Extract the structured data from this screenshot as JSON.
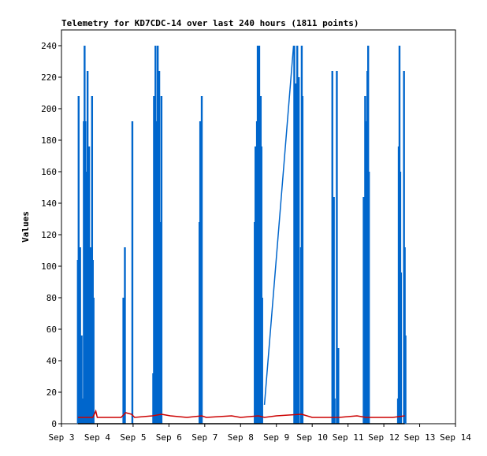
{
  "chart_data": {
    "type": "line",
    "title": "Telemetry for KD7CDC-14 over last 240 hours (1811 points)",
    "xlabel": "",
    "ylabel": "Values",
    "ylim": [
      0,
      250
    ],
    "xlim": [
      "Sep 3",
      "Sep 14"
    ],
    "grid": false,
    "x_ticks": [
      "Sep 3",
      "Sep 4",
      "Sep 5",
      "Sep 6",
      "Sep 7",
      "Sep 8",
      "Sep 9",
      "Sep 10",
      "Sep 11",
      "Sep 12",
      "Sep 13",
      "Sep 14"
    ],
    "y_ticks": [
      0,
      20,
      40,
      60,
      80,
      100,
      120,
      140,
      160,
      180,
      200,
      220,
      240
    ],
    "series": [
      {
        "color": "#0066cc",
        "spikes": [
          [
            "Sep 3 11:00",
            104
          ],
          [
            "Sep 3 11:30",
            208
          ],
          [
            "Sep 3 12:30",
            112
          ],
          [
            "Sep 3 13:30",
            56
          ],
          [
            "Sep 3 14:30",
            16
          ],
          [
            "Sep 3 15:00",
            192
          ],
          [
            "Sep 3 15:30",
            240
          ],
          [
            "Sep 3 16:00",
            192
          ],
          [
            "Sep 3 16:30",
            160
          ],
          [
            "Sep 3 17:30",
            224
          ],
          [
            "Sep 3 18:00",
            112
          ],
          [
            "Sep 3 18:30",
            176
          ],
          [
            "Sep 3 19:30",
            112
          ],
          [
            "Sep 3 20:30",
            208
          ],
          [
            "Sep 3 21:00",
            104
          ],
          [
            "Sep 3 21:30",
            80
          ],
          [
            "Sep 4 17:30",
            80
          ],
          [
            "Sep 4 18:30",
            112
          ],
          [
            "Sep 4 23:30",
            192
          ],
          [
            "Sep 5 13:30",
            32
          ],
          [
            "Sep 5 14:00",
            208
          ],
          [
            "Sep 5 14:30",
            176
          ],
          [
            "Sep 5 15:00",
            240
          ],
          [
            "Sep 5 15:30",
            144
          ],
          [
            "Sep 5 16:00",
            192
          ],
          [
            "Sep 5 16:30",
            240
          ],
          [
            "Sep 5 17:00",
            224
          ],
          [
            "Sep 5 17:30",
            224
          ],
          [
            "Sep 5 18:00",
            36
          ],
          [
            "Sep 5 18:30",
            128
          ],
          [
            "Sep 5 19:00",
            208
          ],
          [
            "Sep 6 20:30",
            128
          ],
          [
            "Sep 6 21:00",
            192
          ],
          [
            "Sep 6 21:30",
            68
          ],
          [
            "Sep 6 22:00",
            208
          ],
          [
            "Sep 8 9:30",
            128
          ],
          [
            "Sep 8 10:00",
            176
          ],
          [
            "Sep 8 11:00",
            192
          ],
          [
            "Sep 8 11:30",
            240
          ],
          [
            "Sep 8 12:30",
            240
          ],
          [
            "Sep 8 13:30",
            208
          ],
          [
            "Sep 8 14:00",
            176
          ],
          [
            "Sep 8 14:30",
            80
          ],
          [
            "Sep 9 12:00",
            240
          ],
          [
            "Sep 9 13:00",
            216
          ],
          [
            "Sep 9 14:00",
            240
          ],
          [
            "Sep 9 15:00",
            220
          ],
          [
            "Sep 9 16:30",
            112
          ],
          [
            "Sep 9 17:00",
            240
          ],
          [
            "Sep 9 17:30",
            208
          ],
          [
            "Sep 10 13:30",
            224
          ],
          [
            "Sep 10 14:00",
            128
          ],
          [
            "Sep 10 14:30",
            144
          ],
          [
            "Sep 10 15:00",
            16
          ],
          [
            "Sep 10 16:30",
            224
          ],
          [
            "Sep 10 17:30",
            48
          ],
          [
            "Sep 11 10:30",
            144
          ],
          [
            "Sep 11 11:00",
            128
          ],
          [
            "Sep 11 11:30",
            208
          ],
          [
            "Sep 11 12:00",
            176
          ],
          [
            "Sep 11 12:30",
            192
          ],
          [
            "Sep 11 13:00",
            224
          ],
          [
            "Sep 11 13:30",
            240
          ],
          [
            "Sep 11 14:00",
            160
          ],
          [
            "Sep 12 9:30",
            16
          ],
          [
            "Sep 12 10:00",
            176
          ],
          [
            "Sep 12 10:30",
            240
          ],
          [
            "Sep 12 11:00",
            160
          ],
          [
            "Sep 12 11:30",
            96
          ],
          [
            "Sep 12 13:30",
            224
          ],
          [
            "Sep 12 14:00",
            112
          ],
          [
            "Sep 12 14:30",
            56
          ]
        ],
        "ramp": [
          [
            "Sep 8 16:00",
            12
          ],
          [
            "Sep 9 11:30",
            240
          ]
        ]
      },
      {
        "color": "#cc0000",
        "points": [
          [
            "Sep 3 11:00",
            4
          ],
          [
            "Sep 3 21:00",
            4
          ],
          [
            "Sep 3 23:00",
            8
          ],
          [
            "Sep 4 0:00",
            4
          ],
          [
            "Sep 4 16:00",
            4
          ],
          [
            "Sep 4 19:00",
            7
          ],
          [
            "Sep 4 23:00",
            6
          ],
          [
            "Sep 5 1:00",
            4
          ],
          [
            "Sep 5 13:00",
            5
          ],
          [
            "Sep 5 19:00",
            6
          ],
          [
            "Sep 6 1:00",
            5
          ],
          [
            "Sep 6 12:00",
            4
          ],
          [
            "Sep 6 22:00",
            5
          ],
          [
            "Sep 7 1:00",
            4
          ],
          [
            "Sep 7 18:00",
            5
          ],
          [
            "Sep 8 0:00",
            4
          ],
          [
            "Sep 8 12:00",
            5
          ],
          [
            "Sep 8 16:00",
            4
          ],
          [
            "Sep 9 0:00",
            5
          ],
          [
            "Sep 9 17:00",
            6
          ],
          [
            "Sep 10 0:00",
            4
          ],
          [
            "Sep 10 18:00",
            4
          ],
          [
            "Sep 11 6:00",
            5
          ],
          [
            "Sep 11 12:00",
            4
          ],
          [
            "Sep 12 6:00",
            4
          ],
          [
            "Sep 12 14:00",
            5
          ]
        ]
      },
      {
        "color": "#000000",
        "points": [
          [
            "Sep 3 11:00",
            0
          ],
          [
            "Sep 12 14:00",
            0
          ]
        ]
      }
    ]
  }
}
